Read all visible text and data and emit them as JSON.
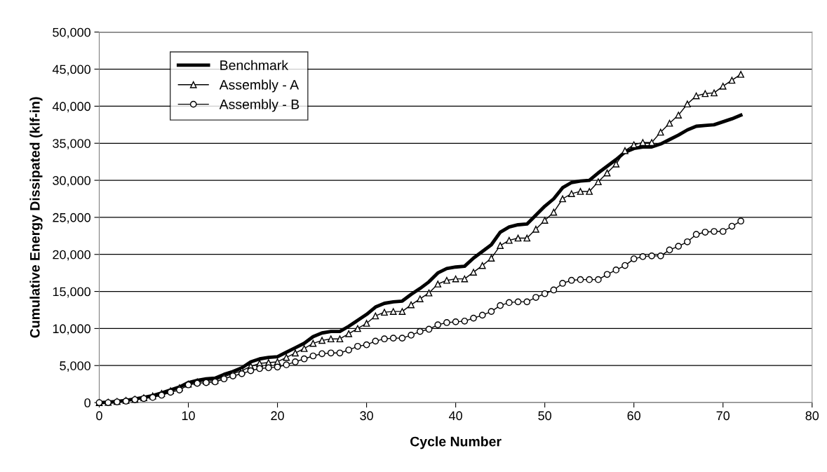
{
  "chart_data": {
    "type": "line",
    "xlabel": "Cycle Number",
    "ylabel": "Cumulative Energy Dissipated (klf-in)",
    "xlim": [
      0,
      80
    ],
    "xticks": [
      0,
      10,
      20,
      30,
      40,
      50,
      60,
      70,
      80
    ],
    "ylim": [
      0,
      50000
    ],
    "yticks": [
      {
        "value": 0,
        "label": "0"
      },
      {
        "value": 5000,
        "label": "5,000"
      },
      {
        "value": 10000,
        "label": "10,000"
      },
      {
        "value": 15000,
        "label": "15,000"
      },
      {
        "value": 20000,
        "label": "20,000"
      },
      {
        "value": 25000,
        "label": "25,000"
      },
      {
        "value": 30000,
        "label": "30,000"
      },
      {
        "value": 35000,
        "label": "35,000"
      },
      {
        "value": 40000,
        "label": "40,000"
      },
      {
        "value": 45000,
        "label": "45,000"
      },
      {
        "value": 50000,
        "label": "50,000"
      }
    ],
    "grid": "y",
    "legend": "top left",
    "x": [
      0,
      1,
      2,
      3,
      4,
      5,
      6,
      7,
      8,
      9,
      10,
      11,
      12,
      13,
      14,
      15,
      16,
      17,
      18,
      19,
      20,
      21,
      22,
      23,
      24,
      25,
      26,
      27,
      28,
      29,
      30,
      31,
      32,
      33,
      34,
      35,
      36,
      37,
      38,
      39,
      40,
      41,
      42,
      43,
      44,
      45,
      46,
      47,
      48,
      49,
      50,
      51,
      52,
      53,
      54,
      55,
      56,
      57,
      58,
      59,
      60,
      61,
      62,
      63,
      64,
      65,
      66,
      67,
      68,
      69,
      70,
      71,
      72
    ],
    "series": [
      {
        "name": "Benchmark",
        "color": "#000000",
        "marker": "none",
        "values": [
          0,
          50,
          150,
          300,
          500,
          700,
          950,
          1300,
          1700,
          2100,
          2700,
          3000,
          3200,
          3300,
          3800,
          4200,
          4700,
          5500,
          5900,
          6100,
          6200,
          6800,
          7400,
          8000,
          8900,
          9400,
          9600,
          9600,
          10300,
          11100,
          11900,
          12900,
          13400,
          13600,
          13700,
          14600,
          15400,
          16300,
          17500,
          18100,
          18300,
          18400,
          19500,
          20400,
          21300,
          23000,
          23700,
          24000,
          24100,
          25300,
          26500,
          27500,
          29000,
          29700,
          29900,
          30000,
          31000,
          31900,
          32800,
          33800,
          34300,
          34500,
          34500,
          34900,
          35500,
          36100,
          36800,
          37300,
          37400,
          37500,
          37900,
          38300,
          38800
        ]
      },
      {
        "name": "Assembly - A",
        "color": "#000000",
        "marker": "triangle",
        "values": [
          0,
          50,
          150,
          300,
          450,
          650,
          900,
          1250,
          1600,
          2000,
          2500,
          2800,
          2900,
          3000,
          3500,
          3900,
          4300,
          4900,
          5300,
          5400,
          5500,
          6100,
          6700,
          7300,
          8000,
          8400,
          8600,
          8600,
          9300,
          10000,
          10700,
          11700,
          12200,
          12300,
          12300,
          13200,
          14000,
          14800,
          16000,
          16500,
          16700,
          16700,
          17600,
          18500,
          19500,
          21200,
          21900,
          22200,
          22200,
          23400,
          24600,
          25700,
          27500,
          28200,
          28500,
          28500,
          29800,
          31000,
          32200,
          34000,
          34800,
          35100,
          35100,
          36500,
          37700,
          38800,
          40300,
          41400,
          41700,
          41800,
          42700,
          43500,
          44300
        ]
      },
      {
        "name": "Assembly - B",
        "color": "#000000",
        "marker": "circle",
        "values": [
          0,
          0,
          100,
          200,
          400,
          550,
          700,
          1000,
          1400,
          1700,
          2400,
          2600,
          2700,
          2800,
          3200,
          3600,
          3900,
          4300,
          4600,
          4700,
          4800,
          5100,
          5500,
          5900,
          6300,
          6600,
          6700,
          6700,
          7100,
          7600,
          7800,
          8300,
          8600,
          8700,
          8700,
          9100,
          9600,
          9900,
          10500,
          10800,
          10900,
          11000,
          11400,
          11800,
          12300,
          13100,
          13500,
          13600,
          13600,
          14200,
          14700,
          15200,
          16100,
          16500,
          16600,
          16600,
          16600,
          17300,
          17900,
          18500,
          19400,
          19700,
          19800,
          19800,
          20600,
          21100,
          21700,
          22700,
          23000,
          23100,
          23100,
          23800,
          24500
        ]
      }
    ]
  }
}
